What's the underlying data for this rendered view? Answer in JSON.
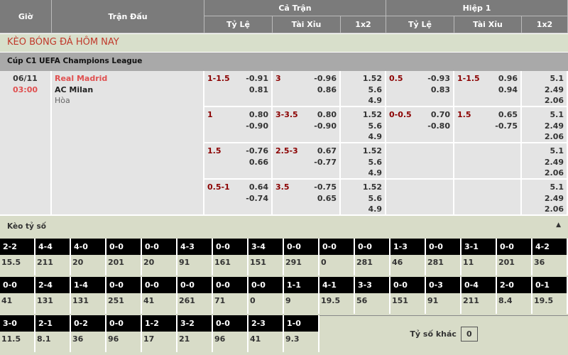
{
  "header": {
    "time": "Giờ",
    "match": "Trận Đấu",
    "full": "Cả Trận",
    "half": "Hiệp 1",
    "cols": [
      "Tỷ Lệ",
      "Tài Xỉu",
      "1x2",
      "Tỷ Lệ",
      "Tài Xỉu",
      "1x2"
    ]
  },
  "banner": "KÈO BÓNG ĐÁ HÔM NAY",
  "league": "Cúp C1 UEFA Champions League",
  "match": {
    "date": "06/11",
    "time": "03:00",
    "home": "Real Madrid",
    "away": "AC Milan",
    "draw": "Hòa"
  },
  "rows": [
    {
      "hdp": "1-1.5",
      "hdp_o": [
        "-0.91",
        "0.81"
      ],
      "ou": "3",
      "ou_o": [
        "-0.96",
        "0.86"
      ],
      "x12": [
        "1.52",
        "5.6",
        "4.9"
      ],
      "h_hdp": "0.5",
      "h_hdp_o": [
        "-0.93",
        "0.83"
      ],
      "h_ou": "1-1.5",
      "h_ou_o": [
        "0.96",
        "0.94"
      ],
      "h_x12": [
        "5.1",
        "2.49",
        "2.06"
      ]
    },
    {
      "hdp": "1",
      "hdp_o": [
        "0.80",
        "-0.90"
      ],
      "ou": "3-3.5",
      "ou_o": [
        "0.80",
        "-0.90"
      ],
      "x12": [
        "1.52",
        "5.6",
        "4.9"
      ],
      "h_hdp": "0-0.5",
      "h_hdp_o": [
        "0.70",
        "-0.80"
      ],
      "h_ou": "1.5",
      "h_ou_o": [
        "0.65",
        "-0.75"
      ],
      "h_x12": [
        "5.1",
        "2.49",
        "2.06"
      ]
    },
    {
      "hdp": "1.5",
      "hdp_o": [
        "-0.76",
        "0.66"
      ],
      "ou": "2.5-3",
      "ou_o": [
        "0.67",
        "-0.77"
      ],
      "x12": [
        "1.52",
        "5.6",
        "4.9"
      ],
      "h_hdp": "",
      "h_hdp_o": [
        "",
        ""
      ],
      "h_ou": "",
      "h_ou_o": [
        "",
        ""
      ],
      "h_x12": [
        "5.1",
        "2.49",
        "2.06"
      ]
    },
    {
      "hdp": "0.5-1",
      "hdp_o": [
        "0.64",
        "-0.74"
      ],
      "ou": "3.5",
      "ou_o": [
        "-0.75",
        "0.65"
      ],
      "x12": [
        "1.52",
        "5.6",
        "4.9"
      ],
      "h_hdp": "",
      "h_hdp_o": [
        "",
        ""
      ],
      "h_ou": "",
      "h_ou_o": [
        "",
        ""
      ],
      "h_x12": [
        "5.1",
        "2.49",
        "2.06"
      ]
    }
  ],
  "correct_score": {
    "title": "Kèo tỷ số",
    "collapse_icon": "triangle-up-icon",
    "rows": [
      [
        [
          "2-2",
          "15.5"
        ],
        [
          "4-4",
          "211"
        ],
        [
          "4-0",
          "20"
        ],
        [
          "0-0",
          "201"
        ],
        [
          "0-0",
          "20"
        ],
        [
          "4-3",
          "91"
        ],
        [
          "0-0",
          "161"
        ],
        [
          "3-4",
          "151"
        ],
        [
          "0-0",
          "291"
        ],
        [
          "0-0",
          "0"
        ],
        [
          "0-0",
          "281"
        ],
        [
          "1-3",
          "46"
        ],
        [
          "0-0",
          "281"
        ],
        [
          "3-1",
          "11"
        ],
        [
          "0-0",
          "201"
        ],
        [
          "4-2",
          "36"
        ]
      ],
      [
        [
          "0-0",
          "41"
        ],
        [
          "2-4",
          "131"
        ],
        [
          "1-4",
          "131"
        ],
        [
          "0-0",
          "251"
        ],
        [
          "0-0",
          "41"
        ],
        [
          "0-0",
          "261"
        ],
        [
          "0-0",
          "71"
        ],
        [
          "0-0",
          "0"
        ],
        [
          "1-1",
          "9"
        ],
        [
          "4-1",
          "19.5"
        ],
        [
          "3-3",
          "56"
        ],
        [
          "0-0",
          "151"
        ],
        [
          "0-3",
          "91"
        ],
        [
          "0-4",
          "211"
        ],
        [
          "2-0",
          "8.4"
        ],
        [
          "0-1",
          "19.5"
        ]
      ],
      [
        [
          "3-0",
          "11.5"
        ],
        [
          "2-1",
          "8.1"
        ],
        [
          "0-2",
          "36"
        ],
        [
          "0-0",
          "96"
        ],
        [
          "1-2",
          "17"
        ],
        [
          "3-2",
          "21"
        ],
        [
          "0-0",
          "96"
        ],
        [
          "2-3",
          "41"
        ],
        [
          "1-0",
          "9.3"
        ]
      ]
    ],
    "other_label": "Tỷ số khác",
    "other_value": "0"
  }
}
